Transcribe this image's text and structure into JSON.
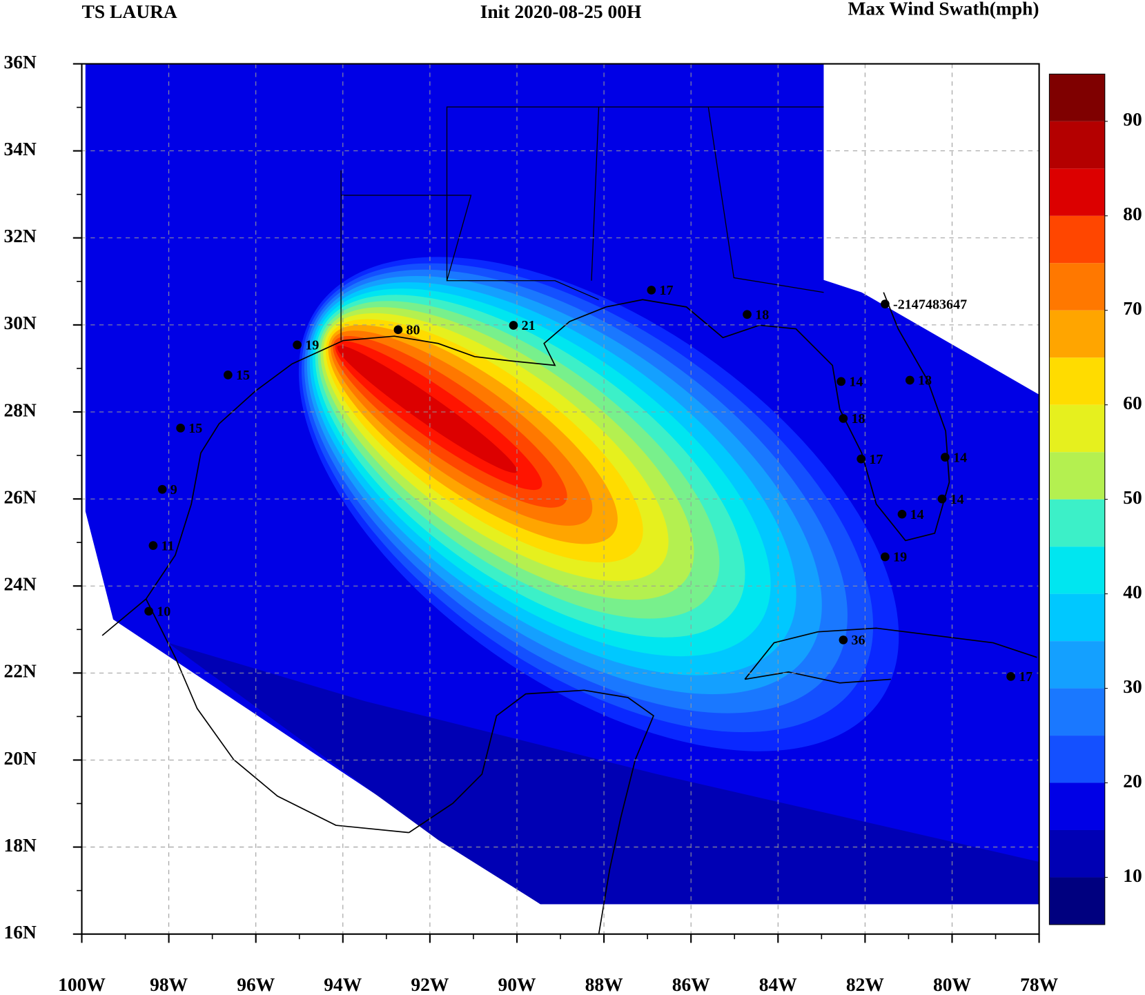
{
  "header": {
    "left": "TS LAURA",
    "center": "Init  2020-08-25 00H",
    "right": "Max Wind Swath(mph)"
  },
  "map": {
    "xlim": [
      -100,
      -78
    ],
    "ylim": [
      16,
      36
    ],
    "xticks": [
      {
        "value": -100,
        "label": "100W"
      },
      {
        "value": -98,
        "label": "98W"
      },
      {
        "value": -96,
        "label": "96W"
      },
      {
        "value": -94,
        "label": "94W"
      },
      {
        "value": -92,
        "label": "92W"
      },
      {
        "value": -90,
        "label": "90W"
      },
      {
        "value": -88,
        "label": "88W"
      },
      {
        "value": -86,
        "label": "86W"
      },
      {
        "value": -84,
        "label": "84W"
      },
      {
        "value": -82,
        "label": "82W"
      },
      {
        "value": -80,
        "label": "80W"
      },
      {
        "value": -78,
        "label": "78W"
      }
    ],
    "yticks": [
      {
        "value": 16,
        "label": "16N"
      },
      {
        "value": 18,
        "label": "18N"
      },
      {
        "value": 20,
        "label": "20N"
      },
      {
        "value": 22,
        "label": "22N"
      },
      {
        "value": 24,
        "label": "24N"
      },
      {
        "value": 26,
        "label": "26N"
      },
      {
        "value": 28,
        "label": "28N"
      },
      {
        "value": 30,
        "label": "30N"
      },
      {
        "value": 32,
        "label": "32N"
      },
      {
        "value": 34,
        "label": "34N"
      },
      {
        "value": 36,
        "label": "36N"
      }
    ],
    "grid": true,
    "stations": [
      {
        "lon": -92.73,
        "lat": 29.89,
        "value": 80
      },
      {
        "lon": -90.08,
        "lat": 29.99,
        "value": 21
      },
      {
        "lon": -86.91,
        "lat": 30.8,
        "value": 17
      },
      {
        "lon": -84.71,
        "lat": 30.24,
        "value": 18
      },
      {
        "lon": -81.54,
        "lat": 30.48,
        "value": -2147483647
      },
      {
        "lon": -95.05,
        "lat": 29.54,
        "value": 19
      },
      {
        "lon": -96.64,
        "lat": 28.85,
        "value": 15
      },
      {
        "lon": -97.73,
        "lat": 27.63,
        "value": 15
      },
      {
        "lon": -98.15,
        "lat": 26.22,
        "value": 9
      },
      {
        "lon": -98.36,
        "lat": 24.93,
        "value": 11
      },
      {
        "lon": -98.46,
        "lat": 23.42,
        "value": 10
      },
      {
        "lon": -82.55,
        "lat": 28.7,
        "value": 14
      },
      {
        "lon": -80.97,
        "lat": 28.73,
        "value": 18
      },
      {
        "lon": -82.5,
        "lat": 27.85,
        "value": 18
      },
      {
        "lon": -82.09,
        "lat": 26.92,
        "value": 17
      },
      {
        "lon": -80.16,
        "lat": 26.96,
        "value": 14
      },
      {
        "lon": -80.23,
        "lat": 26.0,
        "value": 14
      },
      {
        "lon": -81.15,
        "lat": 25.65,
        "value": 14
      },
      {
        "lon": -81.54,
        "lat": 24.67,
        "value": 19
      },
      {
        "lon": -82.5,
        "lat": 22.76,
        "value": 36
      },
      {
        "lon": -78.65,
        "lat": 21.92,
        "value": 17
      }
    ]
  },
  "colorbar": {
    "range": [
      5,
      95
    ],
    "ticks": [
      10,
      20,
      30,
      40,
      50,
      60,
      70,
      80,
      90
    ],
    "colors": [
      "#00007f",
      "#0000b4",
      "#0000e6",
      "#0a28ff",
      "#1450ff",
      "#1a78ff",
      "#14a0ff",
      "#00c8ff",
      "#00e6f0",
      "#3cf0c8",
      "#78f08c",
      "#b4f050",
      "#e6f01e",
      "#ffdc00",
      "#ffa500",
      "#ff7800",
      "#ff4600",
      "#ff1400",
      "#dc0000",
      "#b40000",
      "#7f0000"
    ]
  }
}
